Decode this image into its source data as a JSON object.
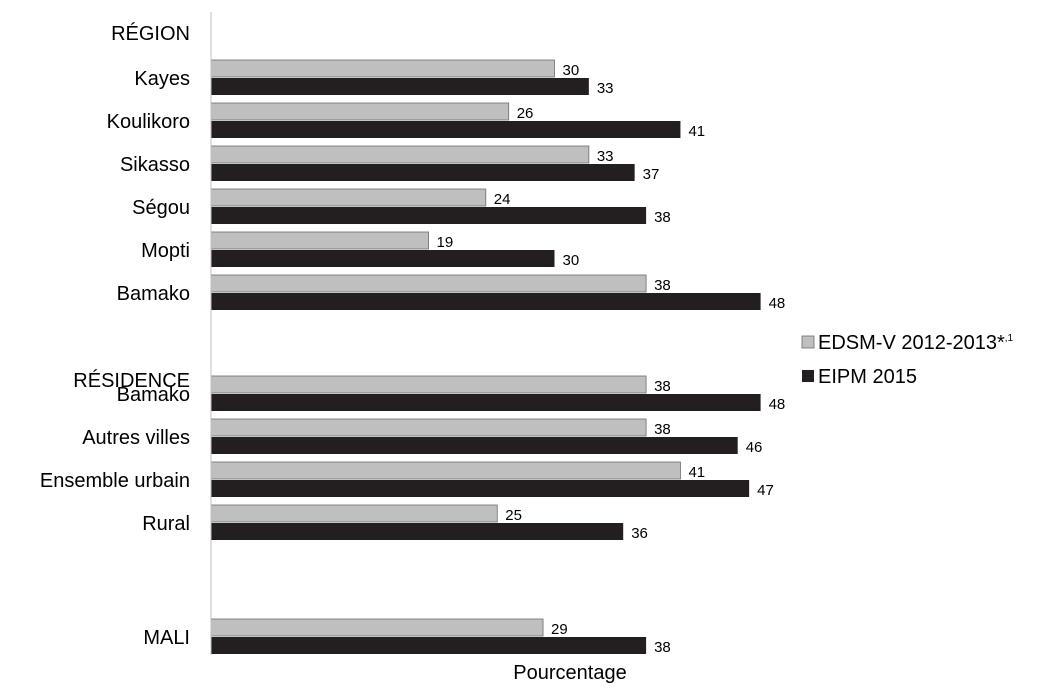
{
  "chart_data": {
    "type": "bar",
    "orientation": "horizontal",
    "xlabel": "Pourcentage",
    "ylabel": "",
    "xlim": [
      0,
      55
    ],
    "grid": false,
    "legend_position": "right",
    "groups": [
      {
        "label": "RÉGION",
        "categories": [
          "Kayes",
          "Koulikoro",
          "Sikasso",
          "Ségou",
          "Mopti",
          "Bamako"
        ]
      },
      {
        "label": "RÉSIDENCE",
        "categories": [
          "Bamako",
          "Autres villes",
          "Ensemble urbain",
          "Rural"
        ]
      },
      {
        "label": "",
        "categories": [
          "MALI"
        ]
      }
    ],
    "categories": [
      "Kayes",
      "Koulikoro",
      "Sikasso",
      "Ségou",
      "Mopti",
      "Bamako",
      "Bamako",
      "Autres villes",
      "Ensemble urbain",
      "Rural",
      "MALI"
    ],
    "series": [
      {
        "name": "EDSM-V 2012-2013*",
        "name_sup": ",1",
        "color": "#bfbfbf",
        "values": [
          30,
          26,
          33,
          24,
          19,
          38,
          38,
          38,
          41,
          25,
          29
        ]
      },
      {
        "name": "EIPM 2015",
        "name_sup": "",
        "color": "#231f20",
        "values": [
          33,
          41,
          37,
          38,
          30,
          48,
          48,
          46,
          47,
          36,
          38
        ]
      }
    ]
  }
}
